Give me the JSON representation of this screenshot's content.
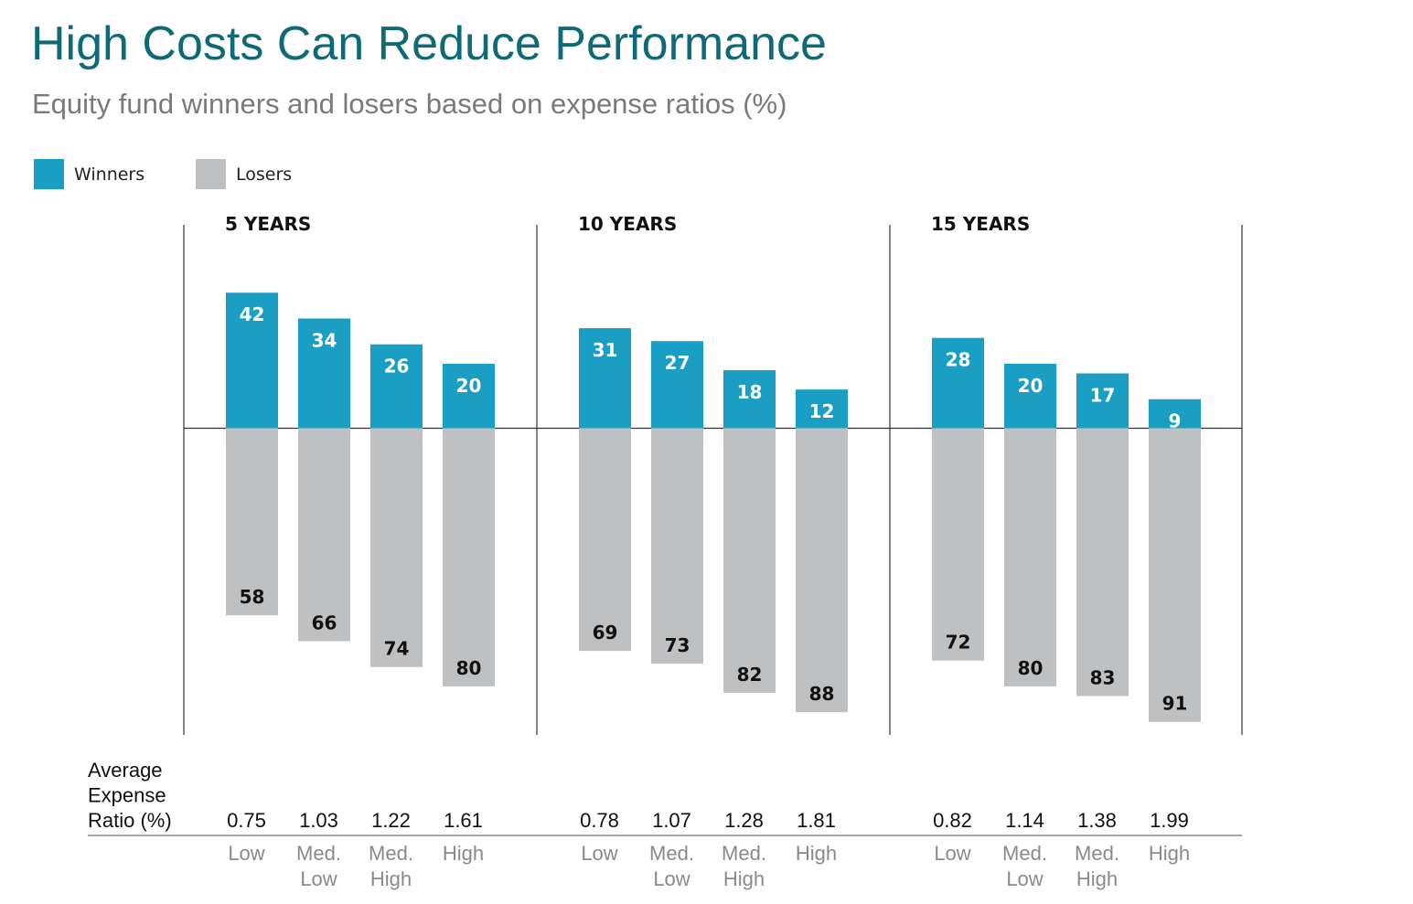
{
  "title": "High Costs Can Reduce Performance",
  "subtitle": "Equity fund winners and losers based on expense ratios (%)",
  "legend": {
    "winners": {
      "label": "Winners",
      "color": "#1b9ec4"
    },
    "losers": {
      "label": "Losers",
      "color": "#bfc0c2"
    }
  },
  "expense_label": [
    "Average",
    "Expense",
    "Ratio (%)"
  ],
  "chart_data": {
    "type": "bar",
    "title": "High Costs Can Reduce Performance",
    "subtitle": "Equity fund winners and losers based on expense ratios (%)",
    "ylabel": "",
    "ylim": [
      -100,
      100
    ],
    "categories": [
      [
        "Low"
      ],
      [
        "Med.",
        "Low"
      ],
      [
        "Med.",
        "High"
      ],
      [
        "High"
      ]
    ],
    "panels": [
      {
        "label": "5 YEARS",
        "expense_ratios": [
          "0.75",
          "1.03",
          "1.22",
          "1.61"
        ],
        "winners": [
          42,
          34,
          26,
          20
        ],
        "losers": [
          58,
          66,
          74,
          80
        ]
      },
      {
        "label": "10 YEARS",
        "expense_ratios": [
          "0.78",
          "1.07",
          "1.28",
          "1.81"
        ],
        "winners": [
          31,
          27,
          18,
          12
        ],
        "losers": [
          69,
          73,
          82,
          88
        ]
      },
      {
        "label": "15 YEARS",
        "expense_ratios": [
          "0.82",
          "1.14",
          "1.38",
          "1.99"
        ],
        "winners": [
          28,
          20,
          17,
          9
        ],
        "losers": [
          72,
          80,
          83,
          91
        ]
      }
    ],
    "series": [
      {
        "name": "Winners"
      },
      {
        "name": "Losers"
      }
    ]
  }
}
